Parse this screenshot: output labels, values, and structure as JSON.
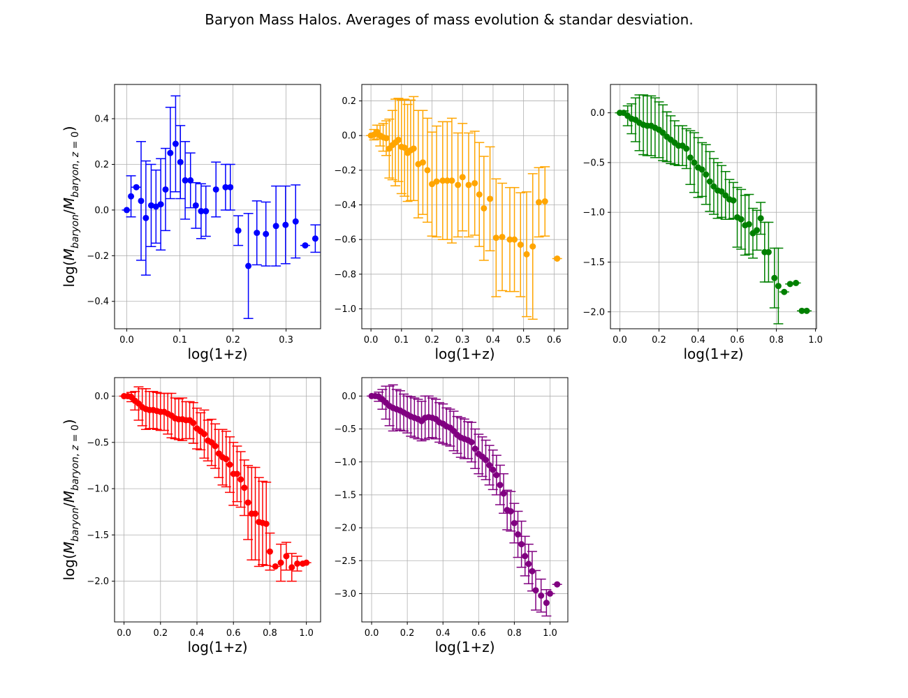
{
  "figure": {
    "title": "Baryon Mass Halos. Averages of mass evolution & standar desviation."
  },
  "chart_data": [
    {
      "type": "scatter",
      "color": "#0000ff",
      "grid": true,
      "xlabel": "log(1+z)",
      "ylabel": "log(M_baryon/M_baryon,z=0)",
      "xlim": [
        -0.023,
        0.365
      ],
      "ylim": [
        -0.52,
        0.55
      ],
      "xticks": [
        0.0,
        0.1,
        0.2,
        0.3
      ],
      "xtick_labels": [
        "0.0",
        "0.1",
        "0.2",
        "0.3"
      ],
      "yticks": [
        -0.4,
        -0.2,
        0.0,
        0.2,
        0.4
      ],
      "ytick_labels": [
        "−0.4",
        "−0.2",
        "0.0",
        "0.2",
        "0.4"
      ],
      "series": [
        {
          "x": [
            0.0,
            0.008,
            0.018,
            0.027,
            0.036,
            0.046,
            0.055,
            0.064,
            0.073,
            0.082,
            0.092,
            0.101,
            0.11,
            0.12,
            0.13,
            0.14,
            0.149,
            0.168,
            0.186,
            0.195,
            0.21,
            0.229,
            0.245,
            0.262,
            0.281,
            0.299,
            0.318,
            0.336,
            0.355
          ],
          "y": [
            0.0,
            0.06,
            0.1,
            0.04,
            -0.035,
            0.02,
            0.015,
            0.025,
            0.09,
            0.25,
            0.29,
            0.21,
            0.13,
            0.13,
            0.02,
            -0.005,
            -0.005,
            0.09,
            0.1,
            0.1,
            -0.09,
            -0.245,
            -0.1,
            -0.105,
            -0.07,
            -0.065,
            -0.05,
            -0.155,
            -0.125
          ],
          "err": [
            0.0,
            0.09,
            0.0,
            0.26,
            0.25,
            0.18,
            0.16,
            0.2,
            0.18,
            0.2,
            0.21,
            0.16,
            0.17,
            0.12,
            0.1,
            0.12,
            0.11,
            0.12,
            0.1,
            0.1,
            0.065,
            0.23,
            0.14,
            0.14,
            0.175,
            0.17,
            0.16,
            0.0,
            0.06
          ]
        }
      ]
    },
    {
      "type": "scatter",
      "color": "#ffa500",
      "grid": true,
      "xlabel": "log(1+z)",
      "ylabel": "",
      "xlim": [
        -0.03,
        0.645
      ],
      "ylim": [
        -1.115,
        0.295
      ],
      "xticks": [
        0.0,
        0.1,
        0.2,
        0.3,
        0.4,
        0.5,
        0.6
      ],
      "xtick_labels": [
        "0.0",
        "0.1",
        "0.2",
        "0.3",
        "0.4",
        "0.5",
        "0.6"
      ],
      "yticks": [
        -1.0,
        -0.8,
        -0.6,
        -0.4,
        -0.2,
        0.0,
        0.2
      ],
      "ytick_labels": [
        "−1.0",
        "−0.8",
        "−0.6",
        "−0.4",
        "−0.2",
        "0.0",
        "0.2"
      ],
      "series": [
        {
          "x": [
            0.0,
            0.01,
            0.02,
            0.03,
            0.04,
            0.05,
            0.06,
            0.07,
            0.08,
            0.09,
            0.1,
            0.11,
            0.12,
            0.13,
            0.14,
            0.155,
            0.17,
            0.185,
            0.2,
            0.215,
            0.235,
            0.25,
            0.265,
            0.285,
            0.3,
            0.32,
            0.34,
            0.355,
            0.37,
            0.39,
            0.41,
            0.43,
            0.455,
            0.47,
            0.49,
            0.51,
            0.53,
            0.55,
            0.57,
            0.61
          ],
          "y": [
            0.0,
            0.005,
            0.02,
            0.0,
            -0.01,
            -0.015,
            -0.075,
            -0.055,
            -0.04,
            -0.025,
            -0.065,
            -0.07,
            -0.1,
            -0.085,
            -0.075,
            -0.165,
            -0.155,
            -0.2,
            -0.28,
            -0.265,
            -0.26,
            -0.26,
            -0.26,
            -0.285,
            -0.24,
            -0.285,
            -0.275,
            -0.34,
            -0.42,
            -0.365,
            -0.59,
            -0.585,
            -0.6,
            -0.6,
            -0.63,
            -0.685,
            -0.64,
            -0.385,
            -0.38,
            -0.71
          ],
          "err": [
            0.0,
            0.03,
            0.04,
            0.06,
            0.08,
            0.1,
            0.17,
            0.2,
            0.25,
            0.24,
            0.27,
            0.28,
            0.28,
            0.29,
            0.3,
            0.31,
            0.3,
            0.3,
            0.3,
            0.32,
            0.34,
            0.34,
            0.36,
            0.3,
            0.31,
            0.3,
            0.3,
            0.3,
            0.3,
            0.3,
            0.34,
            0.31,
            0.3,
            0.3,
            0.3,
            0.36,
            0.42,
            0.2,
            0.2,
            0.0
          ]
        }
      ]
    },
    {
      "type": "scatter",
      "color": "#008000",
      "grid": true,
      "xlabel": "log(1+z)",
      "ylabel": "",
      "xlim": [
        -0.048,
        1.005
      ],
      "ylim": [
        -2.17,
        0.285
      ],
      "xticks": [
        0.0,
        0.2,
        0.4,
        0.6,
        0.8,
        1.0
      ],
      "xtick_labels": [
        "0.0",
        "0.2",
        "0.4",
        "0.6",
        "0.8",
        "1.0"
      ],
      "yticks": [
        -2.0,
        -1.5,
        -1.0,
        -0.5,
        0.0
      ],
      "ytick_labels": [
        "−2.0",
        "−1.5",
        "−1.0",
        "−0.5",
        "0.0"
      ],
      "series": [
        {
          "x": [
            0.0,
            0.02,
            0.04,
            0.06,
            0.08,
            0.1,
            0.12,
            0.14,
            0.16,
            0.18,
            0.2,
            0.22,
            0.24,
            0.26,
            0.28,
            0.3,
            0.32,
            0.34,
            0.36,
            0.38,
            0.4,
            0.42,
            0.44,
            0.46,
            0.48,
            0.5,
            0.52,
            0.54,
            0.56,
            0.58,
            0.6,
            0.62,
            0.64,
            0.66,
            0.68,
            0.7,
            0.72,
            0.74,
            0.76,
            0.79,
            0.81,
            0.84,
            0.87,
            0.9,
            0.93,
            0.955
          ],
          "y": [
            0.0,
            0.0,
            -0.03,
            -0.06,
            -0.07,
            -0.1,
            -0.12,
            -0.13,
            -0.13,
            -0.15,
            -0.17,
            -0.2,
            -0.24,
            -0.27,
            -0.3,
            -0.33,
            -0.33,
            -0.36,
            -0.45,
            -0.5,
            -0.55,
            -0.57,
            -0.62,
            -0.69,
            -0.74,
            -0.78,
            -0.79,
            -0.83,
            -0.87,
            -0.88,
            -1.05,
            -1.07,
            -1.13,
            -1.12,
            -1.21,
            -1.18,
            -1.06,
            -1.4,
            -1.4,
            -1.66,
            -1.74,
            -1.8,
            -1.72,
            -1.71,
            -1.99,
            -1.99
          ],
          "err": [
            0.0,
            0.02,
            0.1,
            0.15,
            0.22,
            0.28,
            0.3,
            0.3,
            0.3,
            0.3,
            0.28,
            0.28,
            0.25,
            0.24,
            0.22,
            0.2,
            0.2,
            0.2,
            0.27,
            0.3,
            0.3,
            0.27,
            0.3,
            0.3,
            0.28,
            0.28,
            0.26,
            0.24,
            0.2,
            0.18,
            0.3,
            0.3,
            0.3,
            0.3,
            0.25,
            0.2,
            0.16,
            0.3,
            0.3,
            0.3,
            0.38,
            0.0,
            0.0,
            0.0,
            0.0,
            0.0
          ]
        }
      ]
    },
    {
      "type": "scatter",
      "color": "#ff0000",
      "grid": true,
      "xlabel": "log(1+z)",
      "ylabel": "log(M_baryon/M_baryon,z=0)",
      "xlim": [
        -0.052,
        1.078
      ],
      "ylim": [
        -2.44,
        0.2
      ],
      "xticks": [
        0.0,
        0.2,
        0.4,
        0.6,
        0.8,
        1.0
      ],
      "xtick_labels": [
        "0.0",
        "0.2",
        "0.4",
        "0.6",
        "0.8",
        "1.0"
      ],
      "yticks": [
        -2.0,
        -1.5,
        -1.0,
        -0.5,
        0.0
      ],
      "ytick_labels": [
        "−2.0",
        "−1.5",
        "−1.0",
        "−0.5",
        "0.0"
      ],
      "series": [
        {
          "x": [
            0.0,
            0.02,
            0.04,
            0.06,
            0.08,
            0.1,
            0.12,
            0.14,
            0.16,
            0.18,
            0.2,
            0.22,
            0.24,
            0.26,
            0.28,
            0.3,
            0.32,
            0.34,
            0.36,
            0.38,
            0.4,
            0.42,
            0.44,
            0.46,
            0.48,
            0.5,
            0.52,
            0.54,
            0.56,
            0.58,
            0.6,
            0.62,
            0.64,
            0.66,
            0.68,
            0.7,
            0.72,
            0.74,
            0.76,
            0.78,
            0.8,
            0.83,
            0.86,
            0.89,
            0.92,
            0.95,
            0.98,
            1.0
          ],
          "y": [
            0.0,
            0.0,
            -0.01,
            -0.05,
            -0.08,
            -0.12,
            -0.14,
            -0.15,
            -0.15,
            -0.16,
            -0.17,
            -0.17,
            -0.19,
            -0.21,
            -0.24,
            -0.25,
            -0.25,
            -0.26,
            -0.26,
            -0.29,
            -0.35,
            -0.38,
            -0.41,
            -0.48,
            -0.5,
            -0.54,
            -0.62,
            -0.66,
            -0.68,
            -0.74,
            -0.84,
            -0.84,
            -0.9,
            -0.99,
            -1.15,
            -1.27,
            -1.27,
            -1.36,
            -1.37,
            -1.38,
            -1.68,
            -1.84,
            -1.8,
            -1.73,
            -1.85,
            -1.81,
            -1.81,
            -1.8
          ],
          "err": [
            0.0,
            0.02,
            0.05,
            0.1,
            0.18,
            0.2,
            0.22,
            0.2,
            0.2,
            0.2,
            0.2,
            0.2,
            0.22,
            0.24,
            0.22,
            0.22,
            0.23,
            0.2,
            0.2,
            0.22,
            0.22,
            0.2,
            0.26,
            0.22,
            0.25,
            0.24,
            0.26,
            0.3,
            0.3,
            0.3,
            0.34,
            0.3,
            0.3,
            0.3,
            0.4,
            0.5,
            0.5,
            0.48,
            0.45,
            0.45,
            0.2,
            0.0,
            0.2,
            0.15,
            0.15,
            0.08,
            0.0,
            0.0
          ]
        }
      ]
    },
    {
      "type": "scatter",
      "color": "#800080",
      "grid": true,
      "xlabel": "log(1+z)",
      "ylabel": "",
      "xlim": [
        -0.055,
        1.1
      ],
      "ylim": [
        -3.43,
        0.28
      ],
      "xticks": [
        0.0,
        0.2,
        0.4,
        0.6,
        0.8,
        1.0
      ],
      "xtick_labels": [
        "0.0",
        "0.2",
        "0.4",
        "0.6",
        "0.8",
        "1.0"
      ],
      "yticks": [
        -3.0,
        -2.5,
        -2.0,
        -1.5,
        -1.0,
        -0.5,
        0.0
      ],
      "ytick_labels": [
        "−3.0",
        "−2.5",
        "−2.0",
        "−1.5",
        "−1.0",
        "−0.5",
        "0.0"
      ],
      "series": [
        {
          "x": [
            0.0,
            0.02,
            0.04,
            0.06,
            0.08,
            0.1,
            0.12,
            0.14,
            0.16,
            0.18,
            0.2,
            0.22,
            0.24,
            0.26,
            0.28,
            0.3,
            0.32,
            0.34,
            0.36,
            0.38,
            0.4,
            0.42,
            0.44,
            0.46,
            0.48,
            0.5,
            0.52,
            0.54,
            0.56,
            0.58,
            0.6,
            0.62,
            0.64,
            0.66,
            0.68,
            0.7,
            0.72,
            0.74,
            0.76,
            0.78,
            0.8,
            0.82,
            0.84,
            0.86,
            0.88,
            0.9,
            0.92,
            0.95,
            0.98,
            1.0,
            1.04
          ],
          "y": [
            0.0,
            0.0,
            -0.01,
            -0.05,
            -0.1,
            -0.15,
            -0.18,
            -0.2,
            -0.22,
            -0.25,
            -0.28,
            -0.31,
            -0.33,
            -0.35,
            -0.38,
            -0.33,
            -0.32,
            -0.33,
            -0.35,
            -0.4,
            -0.42,
            -0.46,
            -0.48,
            -0.53,
            -0.59,
            -0.63,
            -0.65,
            -0.67,
            -0.7,
            -0.8,
            -0.88,
            -0.92,
            -0.97,
            -1.05,
            -1.12,
            -1.2,
            -1.35,
            -1.48,
            -1.73,
            -1.75,
            -1.93,
            -2.1,
            -2.25,
            -2.43,
            -2.55,
            -2.66,
            -2.95,
            -3.03,
            -3.14,
            -3.0,
            -2.86
          ],
          "err": [
            0.0,
            0.03,
            0.07,
            0.15,
            0.25,
            0.3,
            0.35,
            0.3,
            0.3,
            0.28,
            0.28,
            0.3,
            0.3,
            0.3,
            0.3,
            0.33,
            0.32,
            0.3,
            0.3,
            0.3,
            0.3,
            0.28,
            0.28,
            0.3,
            0.28,
            0.3,
            0.3,
            0.28,
            0.3,
            0.3,
            0.3,
            0.3,
            0.3,
            0.3,
            0.3,
            0.3,
            0.3,
            0.3,
            0.3,
            0.3,
            0.3,
            0.35,
            0.35,
            0.3,
            0.3,
            0.3,
            0.3,
            0.25,
            0.2,
            0.0,
            0.0
          ]
        }
      ]
    }
  ]
}
